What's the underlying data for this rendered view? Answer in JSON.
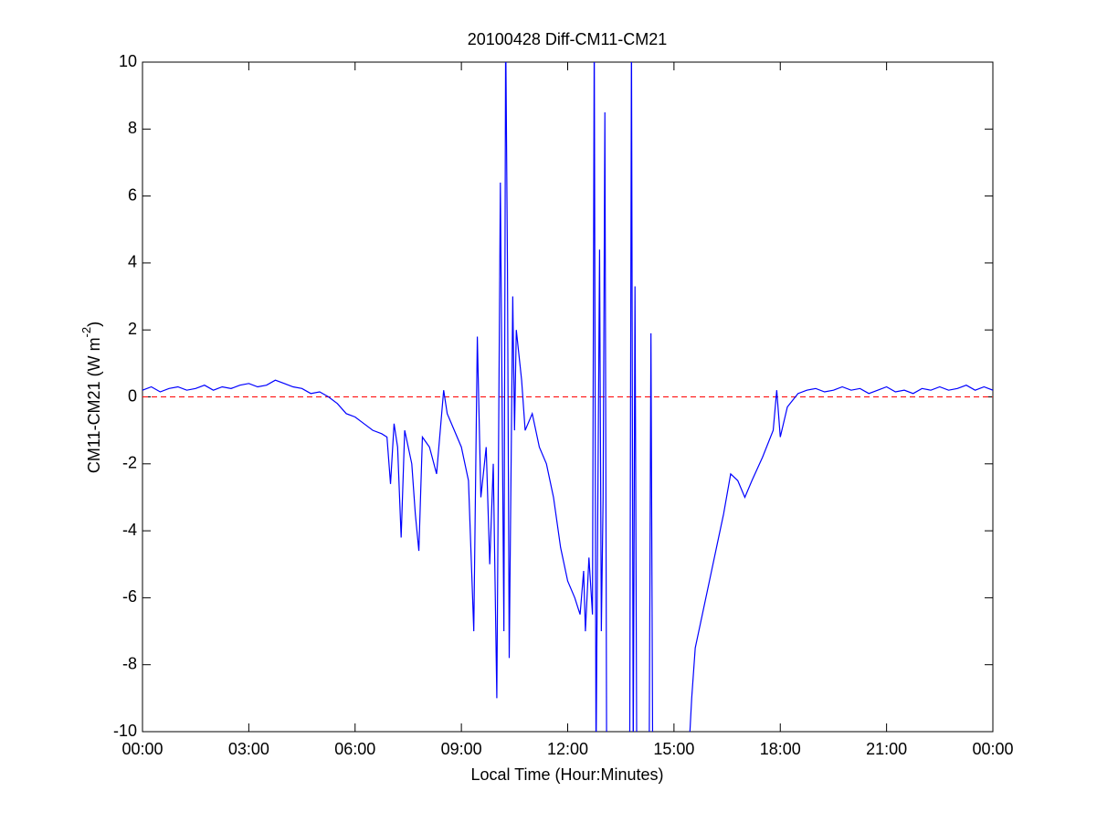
{
  "chart_data": {
    "type": "line",
    "title": "20100428 Diff-CM11-CM21",
    "xlabel": "Local Time (Hour:Minutes)",
    "ylabel": {
      "base": "CM11-CM21 (W m",
      "superscript": "-2",
      "end": ")"
    },
    "xlim": [
      0,
      24
    ],
    "ylim": [
      -10,
      10
    ],
    "xticks": [
      {
        "value": 0,
        "label": "00:00"
      },
      {
        "value": 3,
        "label": "03:00"
      },
      {
        "value": 6,
        "label": "06:00"
      },
      {
        "value": 9,
        "label": "09:00"
      },
      {
        "value": 12,
        "label": "12:00"
      },
      {
        "value": 15,
        "label": "15:00"
      },
      {
        "value": 18,
        "label": "18:00"
      },
      {
        "value": 21,
        "label": "21:00"
      },
      {
        "value": 24,
        "label": "00:00"
      }
    ],
    "yticks": [
      -10,
      -8,
      -6,
      -4,
      -2,
      0,
      2,
      4,
      6,
      8,
      10
    ],
    "grid": false,
    "hline": {
      "y": 0,
      "color": "#ff0000",
      "style": "dashed"
    },
    "x": [
      0,
      0.25,
      0.5,
      0.75,
      1,
      1.25,
      1.5,
      1.75,
      2,
      2.25,
      2.5,
      2.75,
      3,
      3.25,
      3.5,
      3.75,
      4,
      4.25,
      4.5,
      4.75,
      5,
      5.25,
      5.5,
      5.75,
      6,
      6.25,
      6.5,
      6.75,
      6.9,
      7.0,
      7.1,
      7.2,
      7.3,
      7.4,
      7.6,
      7.7,
      7.8,
      7.9,
      8.1,
      8.3,
      8.5,
      8.6,
      8.8,
      9.0,
      9.2,
      9.35,
      9.45,
      9.55,
      9.7,
      9.8,
      9.9,
      10.0,
      10.1,
      10.2,
      10.25,
      10.3,
      10.35,
      10.45,
      10.5,
      10.55,
      10.7,
      10.8,
      11.0,
      11.2,
      11.4,
      11.6,
      11.8,
      12.0,
      12.2,
      12.35,
      12.45,
      12.5,
      12.6,
      12.7,
      12.75,
      12.8,
      12.9,
      12.95,
      13.0,
      13.05,
      13.1,
      13.75,
      13.8,
      13.85,
      13.9,
      13.95,
      14.3,
      14.35,
      14.4,
      15.4,
      15.5,
      15.6,
      15.8,
      16.0,
      16.2,
      16.4,
      16.6,
      16.8,
      17.0,
      17.2,
      17.5,
      17.8,
      17.9,
      18.0,
      18.2,
      18.5,
      18.75,
      19,
      19.25,
      19.5,
      19.75,
      20,
      20.25,
      20.5,
      20.75,
      21,
      21.25,
      21.5,
      21.75,
      22,
      22.25,
      22.5,
      22.75,
      23,
      23.25,
      23.5,
      23.75,
      24
    ],
    "series": [
      {
        "name": "CM11-CM21",
        "color": "#0000ff",
        "values": [
          0.2,
          0.3,
          0.15,
          0.25,
          0.3,
          0.2,
          0.25,
          0.35,
          0.2,
          0.3,
          0.25,
          0.35,
          0.4,
          0.3,
          0.35,
          0.5,
          0.4,
          0.3,
          0.25,
          0.1,
          0.15,
          0.0,
          -0.2,
          -0.5,
          -0.6,
          -0.8,
          -1.0,
          -1.1,
          -1.2,
          -2.6,
          -0.8,
          -1.5,
          -4.2,
          -1.0,
          -2.0,
          -3.5,
          -4.6,
          -1.2,
          -1.5,
          -2.3,
          0.2,
          -0.5,
          -1.0,
          -1.5,
          -2.5,
          -7.0,
          1.8,
          -3.0,
          -1.5,
          -5.0,
          -2.0,
          -9.0,
          6.4,
          -7.0,
          11,
          4.0,
          -7.8,
          3.0,
          -1.0,
          2.0,
          0.5,
          -1.0,
          -0.5,
          -1.5,
          -2.0,
          -3.0,
          -4.5,
          -5.5,
          -6.0,
          -6.5,
          -5.2,
          -7.0,
          -4.8,
          -6.5,
          11,
          -11,
          4.4,
          -7.0,
          -3.0,
          8.5,
          -11,
          -11,
          11,
          -11,
          3.3,
          -11,
          -11,
          1.9,
          -11,
          -11,
          -9.0,
          -7.5,
          -6.5,
          -5.5,
          -4.5,
          -3.5,
          -2.3,
          -2.5,
          -3.0,
          -2.5,
          -1.8,
          -1.0,
          0.2,
          -1.2,
          -0.3,
          0.1,
          0.2,
          0.25,
          0.15,
          0.2,
          0.3,
          0.2,
          0.25,
          0.1,
          0.2,
          0.3,
          0.15,
          0.2,
          0.1,
          0.25,
          0.2,
          0.3,
          0.2,
          0.25,
          0.35,
          0.2,
          0.3,
          0.2
        ]
      }
    ]
  }
}
